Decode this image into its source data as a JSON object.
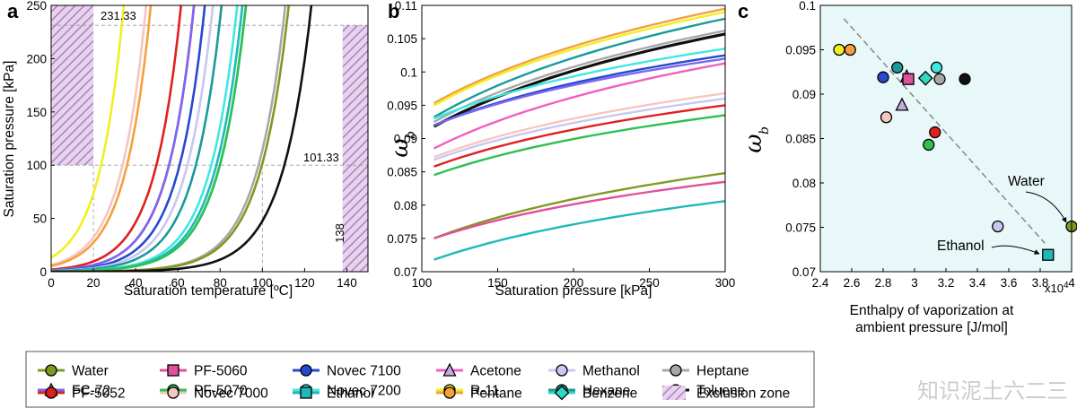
{
  "colors": {
    "Water": "#7f9a21",
    "FC-72": "#7b68ee",
    "PF-5052": "#e02020",
    "PF-5060": "#e0509a",
    "PF-5070": "#2ec050",
    "Novec 7000": "#f6c6c0",
    "Novec 7100": "#2848d0",
    "Novec 7200": "#40e8e0",
    "Ethanol": "#20b8b8",
    "Acetone": "#f060c0",
    "R-11": "#f0f020",
    "Pentane": "#f5a040",
    "Methanol": "#c8c8f0",
    "Hexane": "#1a9a9a",
    "Benzene": "#30d8c0",
    "Heptane": "#a8a8a8",
    "Toluene": "#101010",
    "Exclusion zone": "#c9a5d6"
  },
  "watermark": "知识泥土六二三",
  "chart_data": [
    {
      "panel": "a",
      "type": "line",
      "xlabel": "Saturation temperature [ºC]",
      "ylabel": "Saturation pressure [kPa]",
      "xlim": [
        0,
        150
      ],
      "ylim": [
        0,
        250
      ],
      "xticks": [
        "0",
        "20",
        "40",
        "60",
        "80",
        "100",
        "120",
        "140"
      ],
      "yticks": [
        "0",
        "50",
        "100",
        "150",
        "200",
        "250"
      ],
      "annotations": [
        "231.33",
        "101.33",
        "138"
      ],
      "exclusion_zones": [
        {
          "x": [
            0,
            20
          ],
          "y": [
            100,
            250
          ]
        },
        {
          "x": [
            138,
            150
          ],
          "y": [
            0,
            231.33
          ]
        }
      ],
      "series": [
        {
          "name": "R-11",
          "T100": 23.8
        },
        {
          "name": "Novec 7000",
          "T100": 34
        },
        {
          "name": "Pentane",
          "T100": 36.1
        },
        {
          "name": "PF-5052",
          "T100": 50
        },
        {
          "name": "Acetone",
          "T100": 56
        },
        {
          "name": "PF-5060",
          "T100": 56
        },
        {
          "name": "FC-72",
          "T100": 56
        },
        {
          "name": "Novec 7100",
          "T100": 61
        },
        {
          "name": "Methanol",
          "T100": 64.7
        },
        {
          "name": "Hexane",
          "T100": 68.7
        },
        {
          "name": "Novec 7200",
          "T100": 76
        },
        {
          "name": "Ethanol",
          "T100": 78.4
        },
        {
          "name": "Benzene",
          "T100": 80.1
        },
        {
          "name": "PF-5070",
          "T100": 80
        },
        {
          "name": "Heptane",
          "T100": 98.4
        },
        {
          "name": "Water",
          "T100": 100
        },
        {
          "name": "Toluene",
          "T100": 110.6
        }
      ]
    },
    {
      "panel": "b",
      "type": "line",
      "xlabel": "Saturation pressure [kPa]",
      "ylabel": "ω_b",
      "xlim": [
        100,
        300
      ],
      "ylim": [
        0.07,
        0.11
      ],
      "xticks": [
        "100",
        "150",
        "200",
        "250",
        "300"
      ],
      "yticks": [
        "0.07",
        "0.075",
        "0.08",
        "0.085",
        "0.09",
        "0.095",
        "0.1",
        "0.105",
        "0.11"
      ],
      "series": [
        {
          "name": "Pentane",
          "values": [
            0.0953,
            0.1095
          ]
        },
        {
          "name": "R-11",
          "values": [
            0.095,
            0.109
          ]
        },
        {
          "name": "Hexane",
          "values": [
            0.0932,
            0.108
          ]
        },
        {
          "name": "Heptane",
          "values": [
            0.0925,
            0.1062
          ]
        },
        {
          "name": "Toluene",
          "values": [
            0.0918,
            0.1057
          ]
        },
        {
          "name": "Novec 7200",
          "values": [
            0.093,
            0.1035
          ]
        },
        {
          "name": "Novec 7100",
          "values": [
            0.092,
            0.1025
          ]
        },
        {
          "name": "FC-72",
          "values": [
            0.092,
            0.102
          ]
        },
        {
          "name": "Acetone",
          "values": [
            0.0885,
            0.1013
          ]
        },
        {
          "name": "Novec 7000",
          "values": [
            0.0872,
            0.0968
          ]
        },
        {
          "name": "Methanol",
          "values": [
            0.0868,
            0.096
          ]
        },
        {
          "name": "PF-5052",
          "values": [
            0.0858,
            0.095
          ]
        },
        {
          "name": "PF-5070",
          "values": [
            0.0845,
            0.0935
          ]
        },
        {
          "name": "Water",
          "values": [
            0.075,
            0.0848
          ]
        },
        {
          "name": "PF-5060",
          "values": [
            0.075,
            0.0835
          ]
        },
        {
          "name": "Ethanol",
          "values": [
            0.0718,
            0.0806
          ]
        }
      ]
    },
    {
      "panel": "c",
      "type": "scatter",
      "xlabel": "Enthalpy of vaporization at",
      "xlabel2": "ambient pressure [J/mol]",
      "ylabel": "ω_b",
      "xlim": [
        2.4,
        4.0
      ],
      "ylim": [
        0.07,
        0.1
      ],
      "xscale": "x10^4",
      "xticks": [
        "2.4",
        "2.6",
        "2.8",
        "3",
        "3.2",
        "3.4",
        "3.6",
        "3.8",
        "4"
      ],
      "yticks": [
        "0.07",
        "0.075",
        "0.08",
        "0.085",
        "0.09",
        "0.095",
        "0.1"
      ],
      "annotations": [
        "Water",
        "Ethanol"
      ],
      "points": [
        {
          "name": "R-11",
          "x": 2.52,
          "y": 0.095,
          "marker": "circle"
        },
        {
          "name": "Pentane",
          "x": 2.59,
          "y": 0.095,
          "marker": "circle"
        },
        {
          "name": "Novec 7100",
          "x": 2.8,
          "y": 0.0919,
          "marker": "circle"
        },
        {
          "name": "Hexane",
          "x": 2.89,
          "y": 0.093,
          "marker": "circle"
        },
        {
          "name": "FC-72",
          "x": 2.95,
          "y": 0.092,
          "marker": "triangle"
        },
        {
          "name": "PF-5060",
          "x": 2.96,
          "y": 0.0917,
          "marker": "square"
        },
        {
          "name": "FC-72",
          "x": 2.92,
          "y": 0.0888,
          "marker": "triangle"
        },
        {
          "name": "Novec 7000",
          "x": 2.82,
          "y": 0.0874,
          "marker": "circle"
        },
        {
          "name": "Benzene",
          "x": 3.07,
          "y": 0.0918,
          "marker": "diamond"
        },
        {
          "name": "Novec 7200",
          "x": 3.14,
          "y": 0.093,
          "marker": "circle"
        },
        {
          "name": "Heptane",
          "x": 3.16,
          "y": 0.0917,
          "marker": "circle"
        },
        {
          "name": "Toluene",
          "x": 3.32,
          "y": 0.0917,
          "marker": "circle"
        },
        {
          "name": "PF-5052",
          "x": 3.13,
          "y": 0.0857,
          "marker": "circle"
        },
        {
          "name": "PF-5070",
          "x": 3.09,
          "y": 0.0843,
          "marker": "circle"
        },
        {
          "name": "Methanol",
          "x": 3.53,
          "y": 0.0751,
          "marker": "circle"
        },
        {
          "name": "Water",
          "x": 4.0,
          "y": 0.0751,
          "marker": "circle"
        },
        {
          "name": "Ethanol",
          "x": 3.85,
          "y": 0.0719,
          "marker": "square"
        }
      ],
      "trend_line": {
        "x": [
          2.55,
          3.83
        ],
        "y": [
          0.0985,
          0.0732
        ]
      }
    }
  ],
  "legend": [
    {
      "label": "Water",
      "marker": "circle"
    },
    {
      "label": "PF-5060",
      "marker": "square"
    },
    {
      "label": "Novec 7100",
      "marker": "circle"
    },
    {
      "label": "Acetone",
      "marker": "triangle"
    },
    {
      "label": "Methanol",
      "marker": "circle"
    },
    {
      "label": "Heptane",
      "marker": "circle"
    },
    {
      "label": "FC-72",
      "marker": "triangle"
    },
    {
      "label": "PF-5070",
      "marker": "circle"
    },
    {
      "label": "Novec 7200",
      "marker": "circle"
    },
    {
      "label": "R-11",
      "marker": "circle"
    },
    {
      "label": "Hexane",
      "marker": "circle"
    },
    {
      "label": "Toluene",
      "marker": "circle"
    },
    {
      "label": "PF-5052",
      "marker": "circle"
    },
    {
      "label": "Novec 7000",
      "marker": "circle"
    },
    {
      "label": "Ethanol",
      "marker": "square"
    },
    {
      "label": "Pentane",
      "marker": "circle"
    },
    {
      "label": "Benzene",
      "marker": "diamond"
    },
    {
      "label": "Exclusion zone",
      "marker": "hatch"
    }
  ]
}
